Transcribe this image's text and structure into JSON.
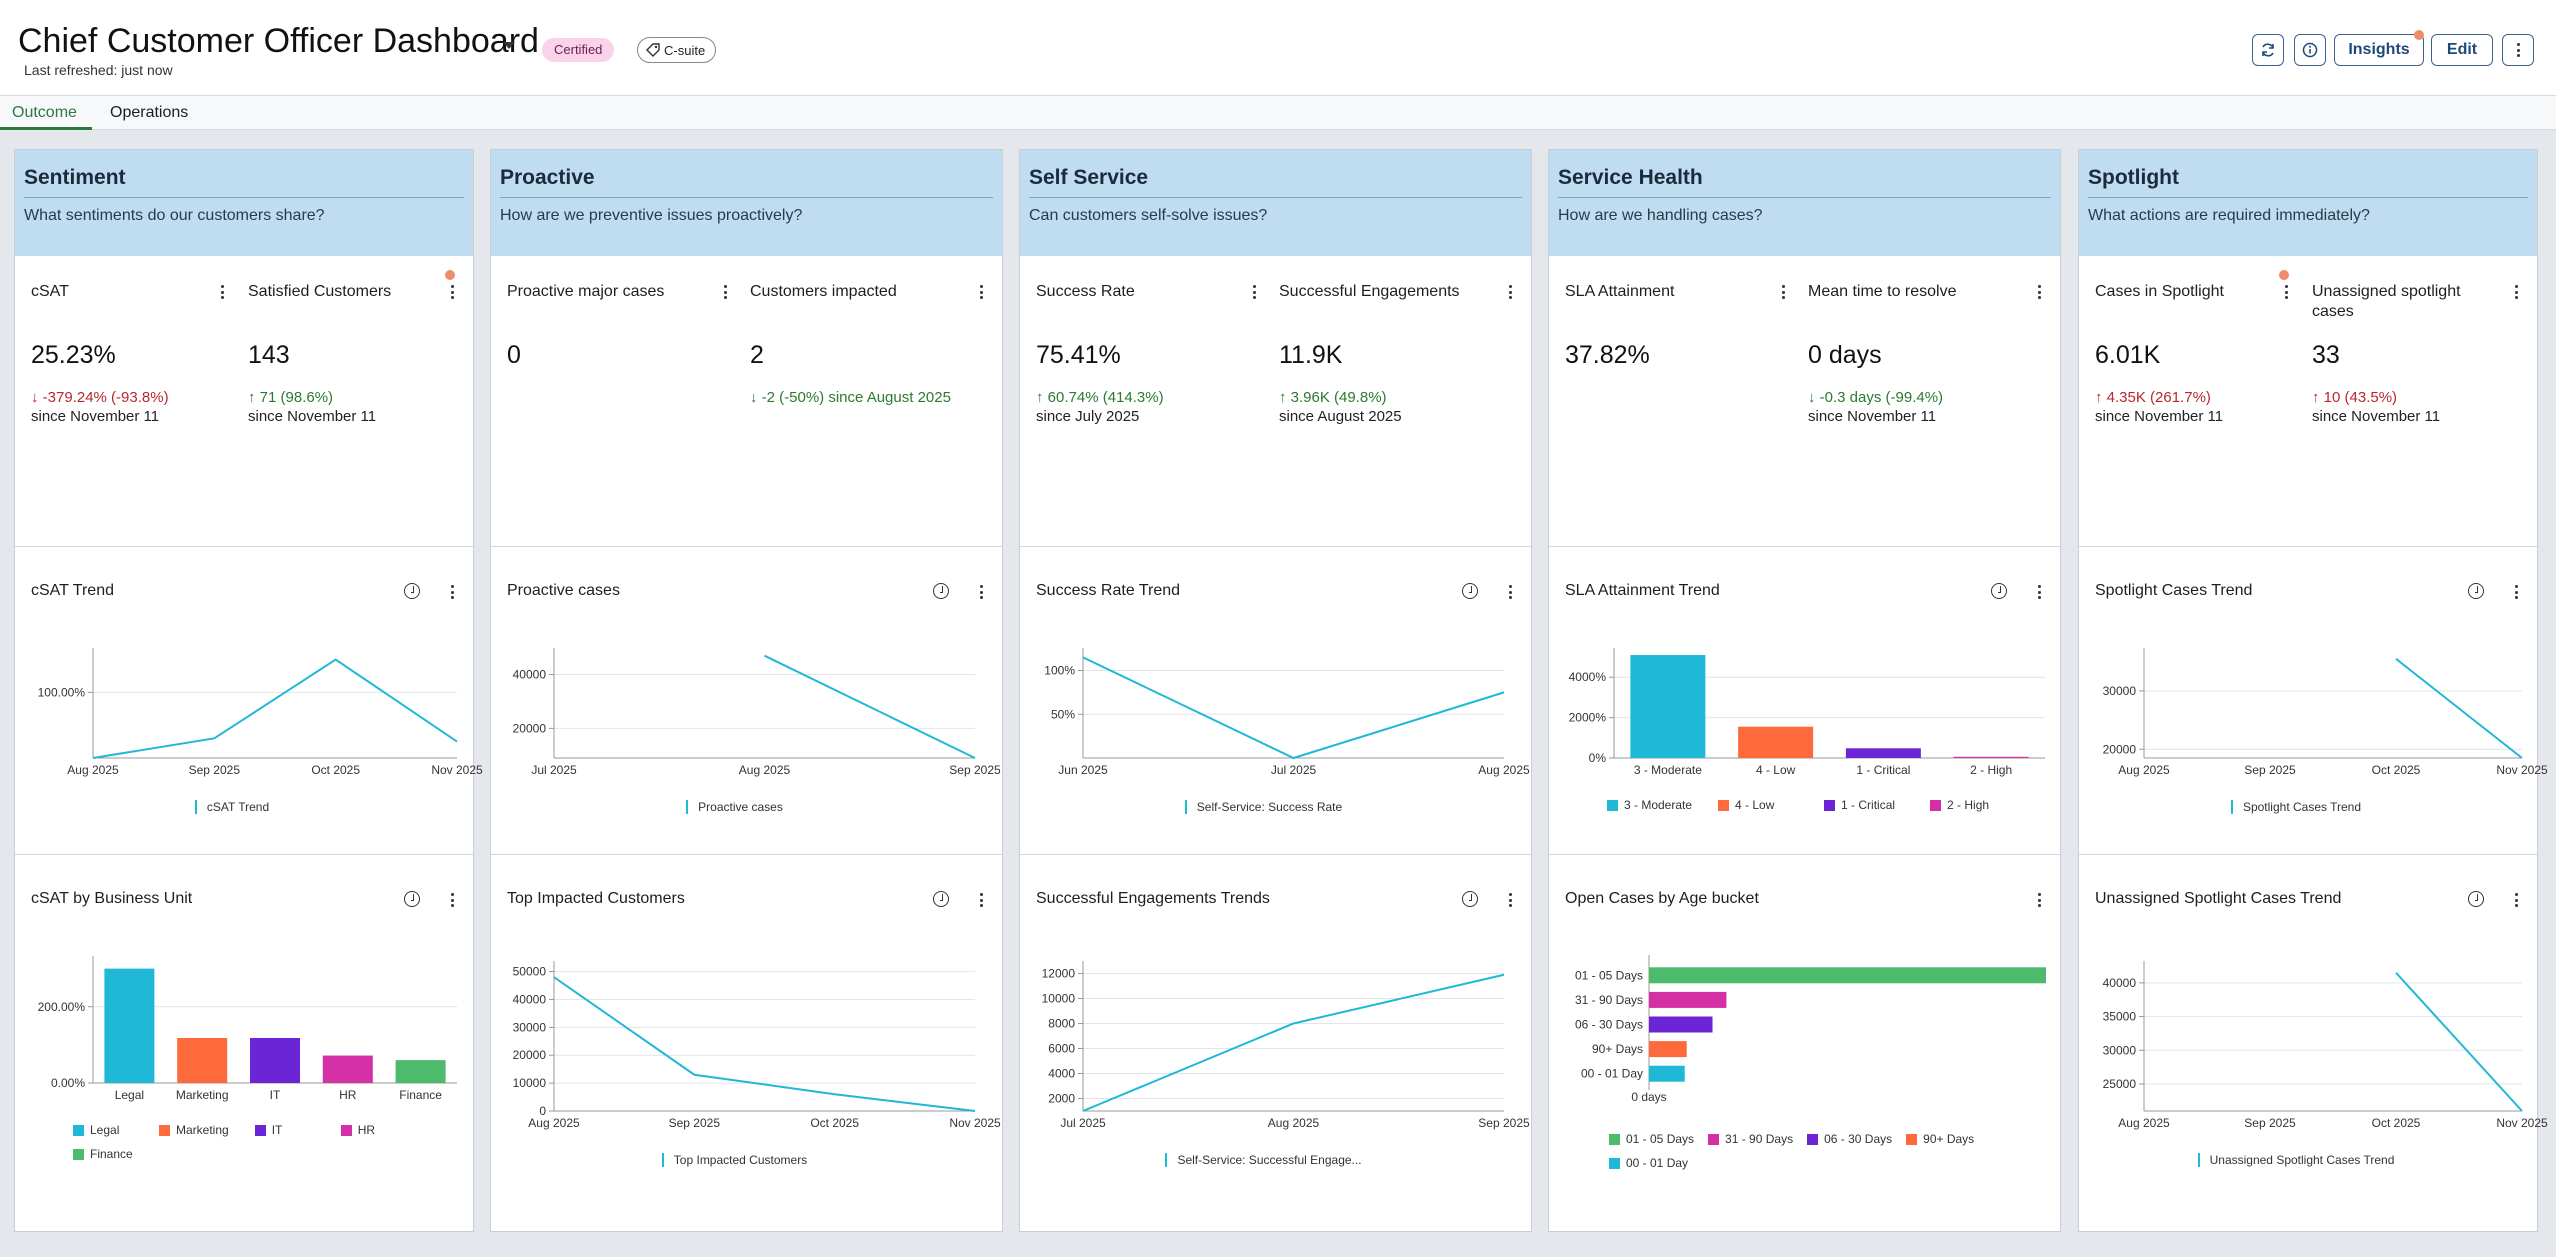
{
  "header": {
    "title": "Chief Customer Officer Dashboard",
    "certified": "Certified",
    "tag": "C-suite",
    "refreshed": "Last refreshed: just now",
    "insights": "Insights",
    "edit": "Edit"
  },
  "tabs": [
    "Outcome",
    "Operations"
  ],
  "colors": {
    "teal": "#1fb8d6",
    "orange": "#ff6a3d",
    "purple": "#6b24d6",
    "pink": "#d42fa5",
    "green": "#4cbb6b",
    "header_bg": "#bfdcf1",
    "up": "#2b7a2f",
    "down": "#b8272c"
  },
  "columns": [
    {
      "title": "Sentiment",
      "question": "What sentiments do our customers share?",
      "kpis": [
        {
          "label": "cSAT",
          "value": "25.23%",
          "delta": "↓ -379.24% (-93.8%)",
          "trend": "down",
          "since": "since November 11"
        },
        {
          "label": "Satisfied Customers",
          "value": "143",
          "delta": "↑ 71 (98.6%)",
          "trend": "up",
          "since": "since November 11"
        }
      ],
      "card1": "cSAT Trend",
      "card2": "cSAT by Business Unit"
    },
    {
      "title": "Proactive",
      "question": "How are we preventive issues proactively?",
      "kpis": [
        {
          "label": "Proactive major cases",
          "value": "0",
          "delta": "",
          "trend": "none",
          "since": ""
        },
        {
          "label": "Customers impacted",
          "value": "2",
          "delta": "↓ -2 (-50%) since August 2025",
          "trend": "up",
          "since": ""
        }
      ],
      "card1": "Proactive cases",
      "card2": "Top Impacted Customers"
    },
    {
      "title": "Self Service",
      "question": "Can customers self-solve issues?",
      "kpis": [
        {
          "label": "Success Rate",
          "value": "75.41%",
          "delta": "↑ 60.74% (414.3%)",
          "trend": "up",
          "since": "since July 2025"
        },
        {
          "label": "Successful Engagements",
          "value": "11.9K",
          "delta": "↑ 3.96K (49.8%)",
          "trend": "up",
          "since": "since August 2025"
        }
      ],
      "card1": "Success Rate Trend",
      "card2": "Successful Engagements Trends"
    },
    {
      "title": "Service Health",
      "question": "How are we handling cases?",
      "kpis": [
        {
          "label": "SLA Attainment",
          "value": "37.82%",
          "delta": "",
          "trend": "none",
          "since": ""
        },
        {
          "label": "Mean time to resolve",
          "value": "0 days",
          "delta": "↓ -0.3 days (-99.4%)",
          "trend": "up",
          "since": "since November 11"
        }
      ],
      "card1": "SLA Attainment Trend",
      "card2": "Open Cases by Age bucket"
    },
    {
      "title": "Spotlight",
      "question": "What actions are required immediately?",
      "kpis": [
        {
          "label": "Cases in Spotlight",
          "value": "6.01K",
          "delta": "↑ 4.35K (261.7%)",
          "trend": "down",
          "since": "since November 11"
        },
        {
          "label": "Unassigned spotlight cases",
          "value": "33",
          "delta": "↑ 10 (43.5%)",
          "trend": "down",
          "since": "since November 11"
        }
      ],
      "card1": "Spotlight Cases Trend",
      "card2": "Unassigned Spotlight Cases Trend"
    }
  ],
  "chart_data": [
    {
      "id": "csat-trend",
      "type": "line",
      "x": [
        "Aug 2025",
        "Sep 2025",
        "Oct 2025",
        "Nov 2025"
      ],
      "series": [
        {
          "name": "cSAT Trend",
          "values": [
            0,
            30,
            150,
            25
          ]
        }
      ],
      "yticks": [
        {
          "v": 100,
          "label": "100.00%"
        }
      ],
      "ylim": [
        0,
        160
      ]
    },
    {
      "id": "csat-bu",
      "type": "bar",
      "categories": [
        "Legal",
        "Marketing",
        "IT",
        "HR",
        "Finance"
      ],
      "values": [
        300,
        118,
        118,
        72,
        60
      ],
      "yticks": [
        {
          "v": 0,
          "label": "0.00%"
        },
        {
          "v": 200,
          "label": "200.00%"
        }
      ],
      "ylim": [
        0,
        320
      ]
    },
    {
      "id": "proactive-cases",
      "type": "line",
      "x": [
        "Jul 2025",
        "Aug 2025",
        "Sep 2025"
      ],
      "series": [
        {
          "name": "Proactive cases",
          "values": [
            null,
            47000,
            9000
          ]
        }
      ],
      "yticks": [
        {
          "v": 20000,
          "label": "20000"
        },
        {
          "v": 40000,
          "label": "40000"
        }
      ],
      "ylim": [
        9000,
        48000
      ]
    },
    {
      "id": "top-impacted",
      "type": "line",
      "x": [
        "Aug 2025",
        "Sep 2025",
        "Oct 2025",
        "Nov 2025"
      ],
      "series": [
        {
          "name": "Top Impacted Customers",
          "values": [
            48000,
            13000,
            6000,
            0
          ]
        }
      ],
      "yticks": [
        {
          "v": 0,
          "label": "0"
        },
        {
          "v": 10000,
          "label": "10000"
        },
        {
          "v": 20000,
          "label": "20000"
        },
        {
          "v": 30000,
          "label": "30000"
        },
        {
          "v": 40000,
          "label": "40000"
        },
        {
          "v": 50000,
          "label": "50000"
        }
      ],
      "ylim": [
        0,
        52000
      ]
    },
    {
      "id": "success-rate",
      "type": "line",
      "x": [
        "Jun 2025",
        "Jul 2025",
        "Aug 2025"
      ],
      "series": [
        {
          "name": "Self-Service: Success Rate",
          "values": [
            115,
            0,
            75
          ]
        }
      ],
      "yticks": [
        {
          "v": 50,
          "label": "50%"
        },
        {
          "v": 100,
          "label": "100%"
        }
      ],
      "ylim": [
        0,
        120
      ]
    },
    {
      "id": "successful-engagements",
      "type": "line",
      "x": [
        "Jul 2025",
        "Aug 2025",
        "Sep 2025"
      ],
      "series": [
        {
          "name": "Self-Service: Successful Engage...",
          "values": [
            1000,
            8000,
            11900
          ]
        }
      ],
      "yticks": [
        {
          "v": 2000,
          "label": "2000"
        },
        {
          "v": 4000,
          "label": "4000"
        },
        {
          "v": 6000,
          "label": "6000"
        },
        {
          "v": 8000,
          "label": "8000"
        },
        {
          "v": 10000,
          "label": "10000"
        },
        {
          "v": 12000,
          "label": "12000"
        }
      ],
      "ylim": [
        1000,
        12600
      ]
    },
    {
      "id": "sla-trend",
      "type": "bar",
      "categories": [
        "3 - Moderate",
        "4 - Low",
        "1 - Critical",
        "2 - High"
      ],
      "values": [
        5100,
        1550,
        480,
        60
      ],
      "yticks": [
        {
          "v": 0,
          "label": "0%"
        },
        {
          "v": 2000,
          "label": "2000%"
        },
        {
          "v": 4000,
          "label": "4000%"
        }
      ],
      "ylim": [
        0,
        5200
      ]
    },
    {
      "id": "age-bucket",
      "type": "bar-horizontal",
      "categories": [
        "01 - 05 Days",
        "31 - 90 Days",
        "06 - 30 Days",
        "90+ Days",
        "00 - 01 Day"
      ],
      "values": [
        100,
        19.5,
        16,
        9.5,
        9
      ],
      "xtick": "0 days",
      "xlim": [
        0,
        100
      ]
    },
    {
      "id": "spotlight-trend",
      "type": "line",
      "x": [
        "Aug 2025",
        "Sep 2025",
        "Oct 2025",
        "Nov 2025"
      ],
      "series": [
        {
          "name": "Spotlight Cases Trend",
          "values": [
            null,
            null,
            35500,
            18500
          ]
        }
      ],
      "yticks": [
        {
          "v": 20000,
          "label": "20000"
        },
        {
          "v": 30000,
          "label": "30000"
        }
      ],
      "ylim": [
        18500,
        36500
      ]
    },
    {
      "id": "unassigned-spotlight",
      "type": "line",
      "x": [
        "Aug 2025",
        "Sep 2025",
        "Oct 2025",
        "Nov 2025"
      ],
      "series": [
        {
          "name": "Unassigned Spotlight Cases Trend",
          "values": [
            null,
            null,
            41500,
            21000
          ]
        }
      ],
      "yticks": [
        {
          "v": 25000,
          "label": "25000"
        },
        {
          "v": 30000,
          "label": "30000"
        },
        {
          "v": 35000,
          "label": "35000"
        },
        {
          "v": 40000,
          "label": "40000"
        }
      ],
      "ylim": [
        21000,
        42500
      ]
    }
  ]
}
